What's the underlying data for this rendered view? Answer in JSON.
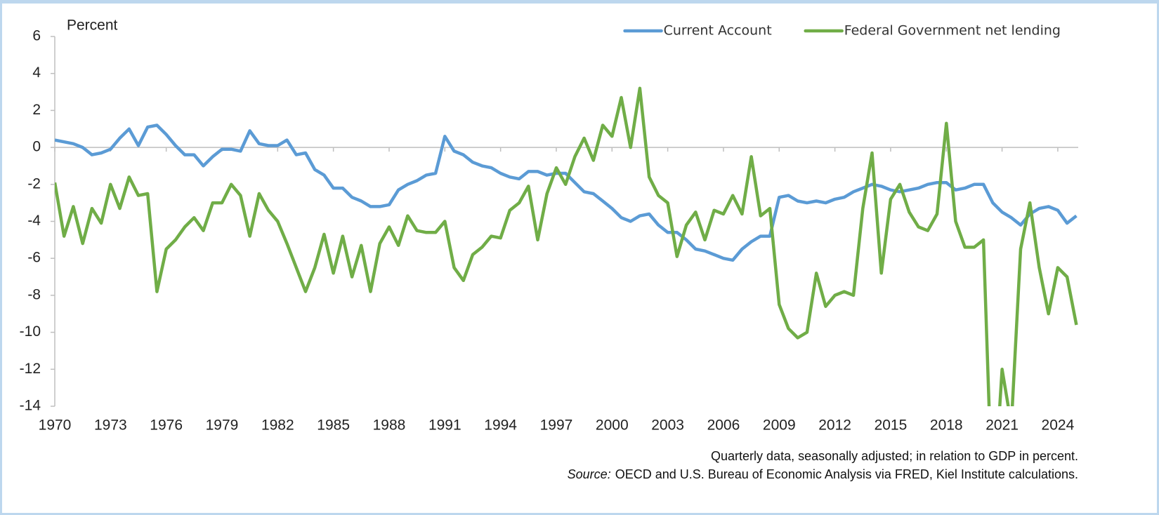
{
  "chart_data": {
    "type": "line",
    "y_axis_label": "Percent",
    "note": "Quarterly data, seasonally adjusted; in relation to GDP in percent.",
    "source_label": "Source:",
    "source": "OECD and U.S. Bureau of Economic Analysis via FRED, Kiel Institute calculations.",
    "x": [
      1970,
      1970.5,
      1971,
      1971.5,
      1972,
      1972.5,
      1973,
      1973.5,
      1974,
      1974.5,
      1975,
      1975.5,
      1976,
      1976.5,
      1977,
      1977.5,
      1978,
      1978.5,
      1979,
      1979.5,
      1980,
      1980.5,
      1981,
      1981.5,
      1982,
      1982.5,
      1983,
      1983.5,
      1984,
      1984.5,
      1985,
      1985.5,
      1986,
      1986.5,
      1987,
      1987.5,
      1988,
      1988.5,
      1989,
      1989.5,
      1990,
      1990.5,
      1991,
      1991.5,
      1992,
      1992.5,
      1993,
      1993.5,
      1994,
      1994.5,
      1995,
      1995.5,
      1996,
      1996.5,
      1997,
      1997.5,
      1998,
      1998.5,
      1999,
      1999.5,
      2000,
      2000.5,
      2001,
      2001.5,
      2002,
      2002.5,
      2003,
      2003.5,
      2004,
      2004.5,
      2005,
      2005.5,
      2006,
      2006.5,
      2007,
      2007.5,
      2008,
      2008.5,
      2009,
      2009.5,
      2010,
      2010.5,
      2011,
      2011.5,
      2012,
      2012.5,
      2013,
      2013.5,
      2014,
      2014.5,
      2015,
      2015.5,
      2016,
      2016.5,
      2017,
      2017.5,
      2018,
      2018.5,
      2019,
      2019.5,
      2020,
      2020.5,
      2021,
      2021.5,
      2022,
      2022.5,
      2023,
      2023.5,
      2024,
      2024.5,
      2025
    ],
    "series": [
      {
        "name": "Current Account",
        "color": "#5b9bd5",
        "values": [
          0.4,
          0.3,
          0.2,
          0,
          -0.4,
          -0.3,
          -0.1,
          0.5,
          1.0,
          0.1,
          1.1,
          1.2,
          0.7,
          0.1,
          -0.4,
          -0.4,
          -1.0,
          -0.5,
          -0.1,
          -0.1,
          -0.2,
          0.9,
          0.2,
          0.1,
          0.1,
          0.4,
          -0.4,
          -0.3,
          -1.2,
          -1.5,
          -2.2,
          -2.2,
          -2.7,
          -2.9,
          -3.2,
          -3.2,
          -3.1,
          -2.3,
          -2.0,
          -1.8,
          -1.5,
          -1.4,
          0.6,
          -0.2,
          -0.4,
          -0.8,
          -1.0,
          -1.1,
          -1.4,
          -1.6,
          -1.7,
          -1.3,
          -1.3,
          -1.5,
          -1.4,
          -1.4,
          -1.9,
          -2.4,
          -2.5,
          -2.9,
          -3.3,
          -3.8,
          -4.0,
          -3.7,
          -3.6,
          -4.2,
          -4.6,
          -4.6,
          -5.0,
          -5.5,
          -5.6,
          -5.8,
          -6.0,
          -6.1,
          -5.5,
          -5.1,
          -4.8,
          -4.8,
          -2.7,
          -2.6,
          -2.9,
          -3.0,
          -2.9,
          -3.0,
          -2.8,
          -2.7,
          -2.4,
          -2.2,
          -2.0,
          -2.1,
          -2.3,
          -2.4,
          -2.3,
          -2.2,
          -2.0,
          -1.9,
          -1.9,
          -2.3,
          -2.2,
          -2.0,
          -2.0,
          -3.0,
          -3.5,
          -3.8,
          -4.2,
          -3.6,
          -3.3,
          -3.2,
          -3.4,
          -4.1,
          -3.7
        ]
      },
      {
        "name": "Federal Government net lending",
        "color": "#70ad47",
        "values": [
          -1.9,
          -4.8,
          -3.2,
          -5.2,
          -3.3,
          -4.1,
          -2.0,
          -3.3,
          -1.6,
          -2.6,
          -2.5,
          -7.8,
          -5.5,
          -5.0,
          -4.3,
          -3.8,
          -4.5,
          -3.0,
          -3.0,
          -2.0,
          -2.6,
          -4.8,
          -2.5,
          -3.4,
          -4.0,
          -5.2,
          -6.5,
          -7.8,
          -6.5,
          -4.7,
          -6.8,
          -4.8,
          -7.0,
          -5.3,
          -7.8,
          -5.2,
          -4.3,
          -5.3,
          -3.7,
          -4.5,
          -4.6,
          -4.6,
          -4.0,
          -6.5,
          -7.2,
          -5.8,
          -5.4,
          -4.8,
          -4.9,
          -3.4,
          -3.0,
          -2.1,
          -5.0,
          -2.5,
          -1.1,
          -2.0,
          -0.5,
          0.5,
          -0.7,
          1.2,
          0.6,
          2.7,
          0.0,
          3.2,
          -1.6,
          -2.6,
          -3.0,
          -5.9,
          -4.2,
          -3.5,
          -5.0,
          -3.4,
          -3.6,
          -2.6,
          -3.6,
          -0.5,
          -3.7,
          -3.3,
          -8.5,
          -9.8,
          -10.3,
          -10.0,
          -6.8,
          -8.6,
          -8.0,
          -7.8,
          -8.0,
          -3.3,
          -0.3,
          -6.8,
          -2.8,
          -2.0,
          -3.5,
          -4.3,
          -4.5,
          -3.6,
          1.3,
          -4.0,
          -5.4,
          -5.4,
          -5.0,
          -20.0,
          -12.0,
          -15.0,
          -5.5,
          -3.0,
          -6.5,
          -9.0,
          -6.5,
          -7.0,
          -9.6
        ]
      }
    ],
    "xlim": [
      1970,
      2025.1
    ],
    "xticks": [
      1970,
      1973,
      1976,
      1979,
      1982,
      1985,
      1988,
      1991,
      1994,
      1997,
      2000,
      2003,
      2006,
      2009,
      2012,
      2015,
      2018,
      2021,
      2024
    ],
    "ylim": [
      -14,
      6
    ],
    "yticks": [
      -14,
      -12,
      -10,
      -8,
      -6,
      -4,
      -2,
      0,
      2,
      4,
      6
    ],
    "legend": "top-right",
    "grid": false
  }
}
